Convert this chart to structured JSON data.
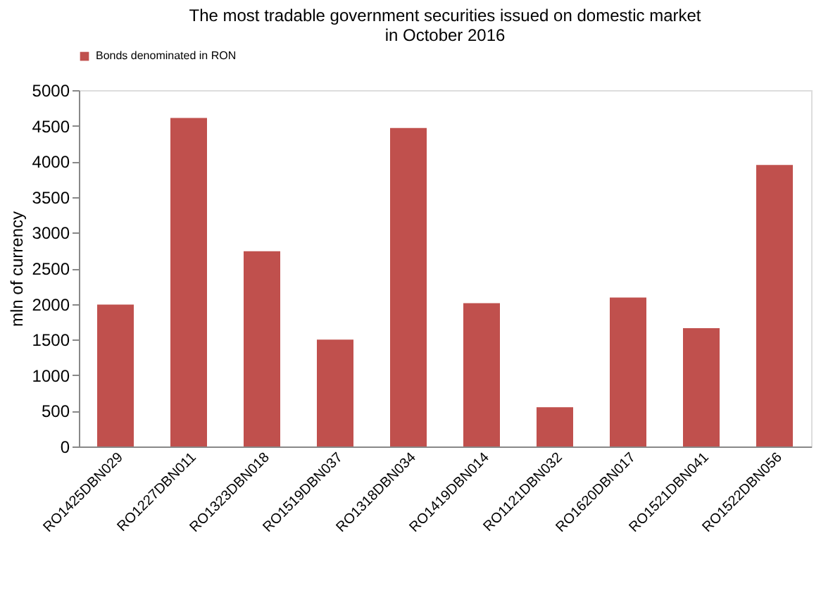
{
  "chart_data": {
    "type": "bar",
    "title": "The most  tradable government securities issued on domestic market in October 2016",
    "ylabel": "mln of currency",
    "categories": [
      "RO1425DBN029",
      "RO1227DBN011",
      "RO1323DBN018",
      "RO1519DBN037",
      "RO1318DBN034",
      "RO1419DBN014",
      "RO1121DBN032",
      "RO1620DBN017",
      "RO1521DBN041",
      "RO1522DBN056"
    ],
    "series": [
      {
        "name": "Bonds denominated in RON",
        "color": "#c0504d",
        "values": [
          1990,
          4610,
          2740,
          1500,
          4470,
          2010,
          550,
          2090,
          1660,
          3950
        ]
      }
    ],
    "ylim": [
      0,
      5000
    ],
    "yticks": [
      0,
      500,
      1000,
      1500,
      2000,
      2500,
      3000,
      3500,
      4000,
      4500,
      5000
    ],
    "grid": false,
    "legend": "top"
  }
}
